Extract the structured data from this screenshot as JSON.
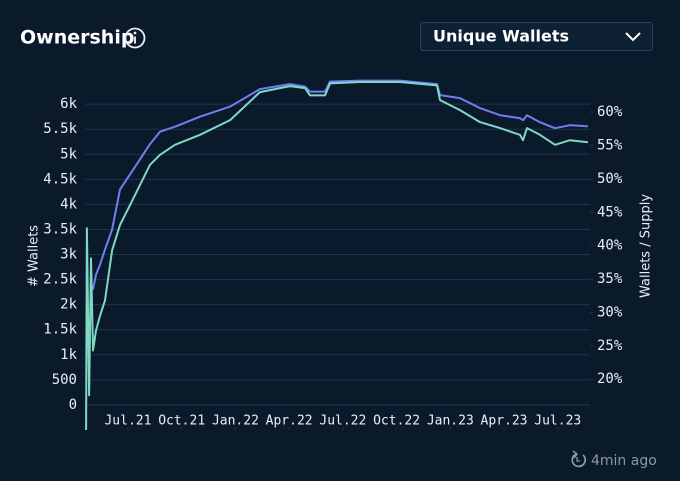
{
  "header": {
    "title": "Ownership",
    "dropdown": "Unique Wallets"
  },
  "footer": {
    "updated": "4min ago"
  },
  "chart_data": {
    "type": "line",
    "y_label": "# Wallets",
    "y2_label": "Wallets / Supply",
    "x": [
      2021.305,
      2021.309,
      2021.319,
      2021.328,
      2021.337,
      2021.351,
      2021.37,
      2021.393,
      2021.426,
      2021.463,
      2021.51,
      2021.556,
      2021.602,
      2021.649,
      2021.719,
      2021.835,
      2021.975,
      2022.114,
      2022.254,
      2022.324,
      2022.347,
      2022.417,
      2022.44,
      2022.58,
      2022.766,
      2022.938,
      2022.952,
      2023.045,
      2023.138,
      2023.231,
      2023.324,
      2023.338,
      2023.357,
      2023.417,
      2023.487,
      2023.557,
      2023.64
    ],
    "series": [
      {
        "color": "#6f7ff2",
        "axis": "y",
        "values": [
          null,
          null,
          null,
          null,
          2300,
          2600,
          2800,
          3100,
          3500,
          4300,
          4600,
          4900,
          5200,
          5450,
          5550,
          5750,
          5950,
          6300,
          6400,
          6350,
          6250,
          6250,
          6450,
          6470,
          6470,
          6400,
          6180,
          6120,
          5920,
          5780,
          5720,
          5680,
          5780,
          5640,
          5520,
          5580,
          5560
        ]
      },
      {
        "color": "#80d8c4",
        "axis": "y2",
        "values": [
          12.4,
          42.6,
          17.6,
          38.1,
          24.3,
          27.3,
          29.5,
          31.8,
          39.3,
          43.1,
          46.1,
          49.1,
          52.1,
          53.6,
          55.1,
          56.6,
          58.8,
          63.0,
          63.9,
          63.6,
          62.5,
          62.5,
          64.3,
          64.5,
          64.5,
          64.0,
          61.8,
          60.3,
          58.5,
          57.6,
          56.6,
          55.8,
          57.6,
          56.6,
          55.1,
          55.8,
          55.5
        ]
      }
    ],
    "xlim": [
      2021.3,
      2023.65
    ],
    "xticks": [
      {
        "value": 2021.5,
        "label": "Jul.21"
      },
      {
        "value": 2021.75,
        "label": "Oct.21"
      },
      {
        "value": 2022,
        "label": "Jan.22"
      },
      {
        "value": 2022.25,
        "label": "Apr.22"
      },
      {
        "value": 2022.5,
        "label": "Jul.22"
      },
      {
        "value": 2022.75,
        "label": "Oct.22"
      },
      {
        "value": 2023,
        "label": "Jan.23"
      },
      {
        "value": 2023.25,
        "label": "Apr.23"
      },
      {
        "value": 2023.5,
        "label": "Jul.23"
      }
    ],
    "ylim": [
      -500,
      7000
    ],
    "yticks": [
      0,
      500,
      {
        "value": 1000,
        "label": "1k"
      },
      {
        "value": 1500,
        "label": "1.5k"
      },
      {
        "value": 2000,
        "label": "2k"
      },
      {
        "value": 2500,
        "label": "2.5k"
      },
      {
        "value": 3000,
        "label": "3k"
      },
      {
        "value": 3500,
        "label": "3.5k"
      },
      {
        "value": 4000,
        "label": "4k"
      },
      {
        "value": 4500,
        "label": "4.5k"
      },
      {
        "value": 5000,
        "label": "5k"
      },
      {
        "value": 5500,
        "label": "5.5k"
      },
      {
        "value": 6000,
        "label": "6k"
      }
    ],
    "y2lim": [
      12.4,
      68.7
    ],
    "y2ticks": [
      {
        "value": 20,
        "label": "20%"
      },
      {
        "value": 25,
        "label": "25%"
      },
      {
        "value": 30,
        "label": "30%"
      },
      {
        "value": 35,
        "label": "35%"
      },
      {
        "value": 40,
        "label": "40%"
      },
      {
        "value": 45,
        "label": "45%"
      },
      {
        "value": 50,
        "label": "50%"
      },
      {
        "value": 55,
        "label": "55%"
      },
      {
        "value": 60,
        "label": "60%"
      }
    ],
    "grid": true
  }
}
